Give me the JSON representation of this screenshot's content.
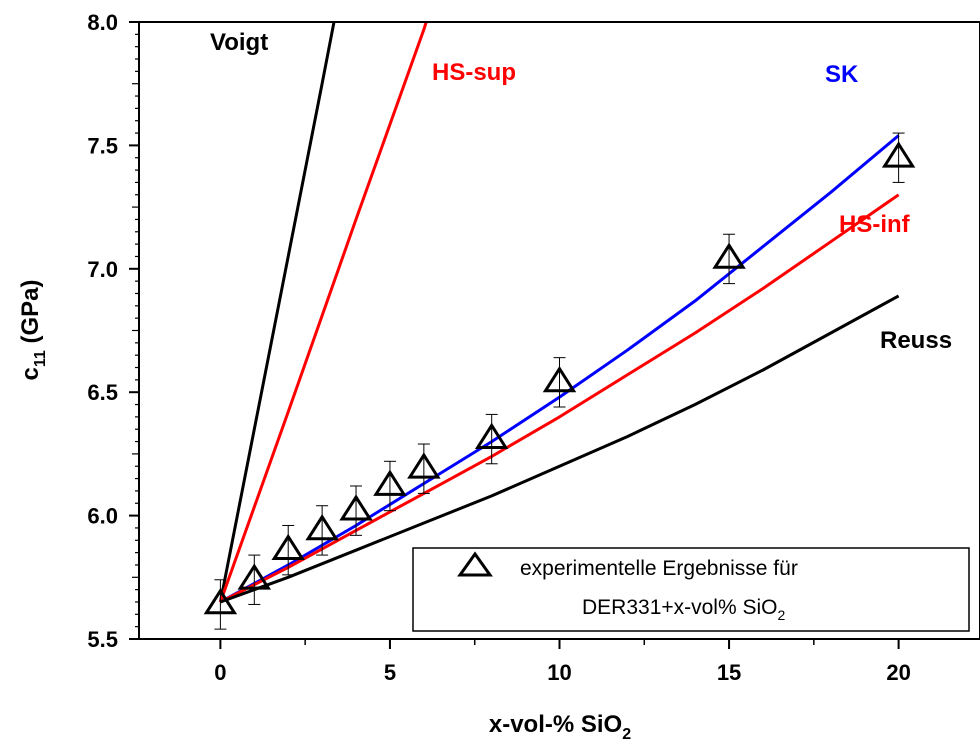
{
  "chart_data": {
    "type": "line",
    "xlabel": {
      "main": "x-vol-% SiO",
      "sub": "2"
    },
    "ylabel": {
      "main": "c",
      "sub": "11",
      "rest": " (GPa)"
    },
    "xlim": [
      -2.4,
      22.4
    ],
    "ylim": [
      5.5,
      8.0
    ],
    "x_ticks": [
      0,
      5,
      10,
      15,
      20
    ],
    "y_ticks": [
      5.5,
      6.0,
      6.5,
      7.0,
      7.5,
      8.0
    ],
    "x_tick_labels": [
      "0",
      "5",
      "10",
      "15",
      "20"
    ],
    "y_tick_labels": [
      "5.5",
      "6.0",
      "6.5",
      "7.0",
      "7.5",
      "8.0"
    ],
    "colors": {
      "black": "#000000",
      "red": "#ff0000",
      "blue": "#0000ff"
    },
    "series": [
      {
        "name": "Voigt",
        "color": "#000000",
        "x": [
          0,
          1,
          2,
          3,
          3.35
        ],
        "y": [
          5.65,
          6.35,
          7.05,
          7.75,
          8.0
        ]
      },
      {
        "name": "HS-sup",
        "color": "#ff0000",
        "x": [
          0,
          2,
          4,
          6,
          6.07
        ],
        "y": [
          5.65,
          6.42,
          7.2,
          7.97,
          8.0
        ]
      },
      {
        "name": "SK",
        "color": "#0000ff",
        "x": [
          0,
          2,
          4,
          6,
          8,
          10,
          12,
          14,
          16,
          18,
          20
        ],
        "y": [
          5.65,
          5.8,
          5.96,
          6.13,
          6.3,
          6.48,
          6.67,
          6.87,
          7.09,
          7.31,
          7.54
        ]
      },
      {
        "name": "HS-inf",
        "color": "#ff0000",
        "x": [
          0,
          2,
          4,
          6,
          8,
          10,
          12,
          14,
          16,
          18,
          20
        ],
        "y": [
          5.65,
          5.79,
          5.94,
          6.09,
          6.24,
          6.4,
          6.57,
          6.74,
          6.92,
          7.11,
          7.3
        ]
      },
      {
        "name": "Reuss",
        "color": "#000000",
        "x": [
          0,
          2,
          4,
          6,
          8,
          10,
          12,
          14,
          16,
          18,
          20
        ],
        "y": [
          5.65,
          5.75,
          5.86,
          5.97,
          6.08,
          6.2,
          6.32,
          6.45,
          6.59,
          6.74,
          6.89
        ]
      }
    ],
    "points": {
      "x": [
        0,
        1,
        2,
        3,
        4,
        5,
        6,
        8,
        10,
        15,
        20
      ],
      "y": [
        5.64,
        5.74,
        5.86,
        5.94,
        6.02,
        6.12,
        6.19,
        6.31,
        6.54,
        7.04,
        7.45
      ],
      "err": [
        0.1,
        0.1,
        0.1,
        0.1,
        0.1,
        0.1,
        0.1,
        0.1,
        0.1,
        0.1,
        0.1
      ]
    },
    "labels": {
      "voigt": "Voigt",
      "hs_sup": "HS-sup",
      "sk": "SK",
      "hs_inf": "HS-inf",
      "reuss": "Reuss"
    },
    "legend": {
      "position": "bottom-right",
      "line1": "experimentelle Ergebnisse für",
      "line2_main": "DER331+x-vol% SiO",
      "line2_sub": "2"
    }
  }
}
